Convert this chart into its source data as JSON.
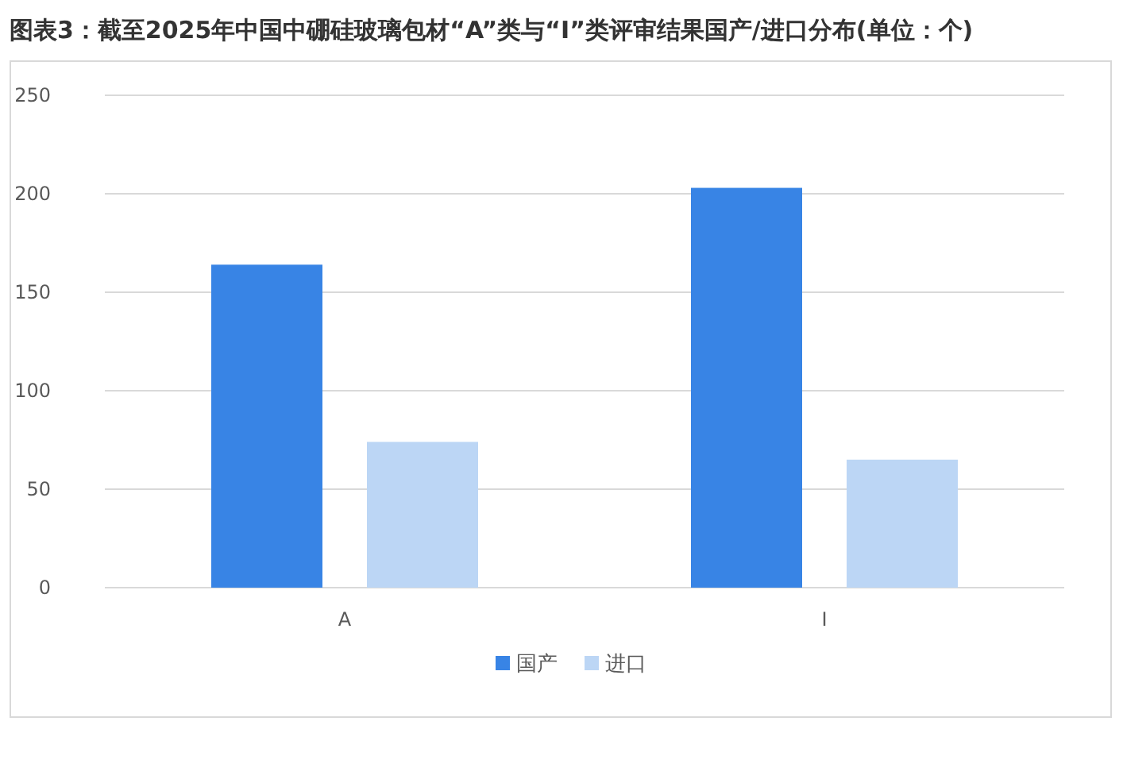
{
  "chart_data": {
    "type": "bar",
    "title": "图表3：截至2025年中国中硼硅玻璃包材“A”类与“I”类评审结果国产/进口分布(单位：个)",
    "categories": [
      "A",
      "I"
    ],
    "series": [
      {
        "name": "国产",
        "color": "#3884e5",
        "values": [
          164,
          203
        ]
      },
      {
        "name": "进口",
        "color": "#bcd6f5",
        "values": [
          74,
          65
        ]
      }
    ],
    "ylim": [
      0,
      250
    ],
    "yticks": [
      0,
      50,
      100,
      150,
      200,
      250
    ],
    "grid": "y",
    "legend": "bottom"
  }
}
